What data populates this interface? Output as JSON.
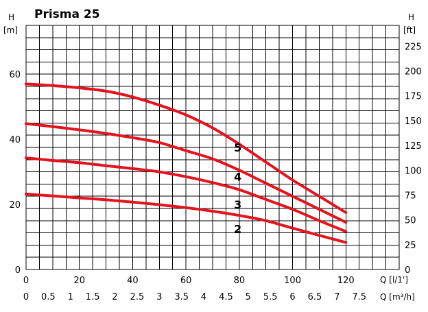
{
  "chart_data": {
    "type": "line",
    "title": "Prisma 25",
    "left_axis": {
      "symbol": "H",
      "unit": "[m]",
      "range": [
        0,
        75
      ],
      "ticks": [
        0,
        20,
        40,
        60
      ]
    },
    "right_axis": {
      "symbol": "H",
      "unit": "[ft]",
      "range": [
        0,
        246
      ],
      "ticks": [
        0,
        25,
        50,
        75,
        100,
        125,
        150,
        175,
        200,
        225
      ]
    },
    "x_axis_primary": {
      "label": "Q [l/1']",
      "range": [
        0,
        140
      ],
      "ticks": [
        0,
        20,
        40,
        60,
        80,
        100,
        120
      ]
    },
    "x_axis_secondary": {
      "label": "Q [m³/h]",
      "ticks": [
        "0",
        "0.5",
        "1",
        "1.5",
        "2",
        "2.5",
        "3",
        "3.5",
        "4",
        "4.5",
        "5",
        "5.5",
        "6",
        "6.5",
        "7",
        "7.5"
      ]
    },
    "grid": true,
    "line_color": "#e3141e",
    "series": [
      {
        "name": "5",
        "x": [
          0,
          10,
          20,
          30,
          40,
          50,
          60,
          70,
          80,
          90,
          100,
          110,
          120
        ],
        "y": [
          57,
          56.5,
          55.8,
          54.8,
          53,
          50.5,
          47.5,
          43.5,
          38.5,
          33,
          27.5,
          22.5,
          17.5
        ]
      },
      {
        "name": "4",
        "x": [
          0,
          10,
          20,
          30,
          40,
          50,
          60,
          70,
          80,
          90,
          100,
          110,
          120
        ],
        "y": [
          44.8,
          43.9,
          42.9,
          41.8,
          40.5,
          39,
          36.5,
          34,
          30.5,
          26.5,
          22.5,
          18.5,
          14.5
        ]
      },
      {
        "name": "3",
        "x": [
          0,
          10,
          20,
          30,
          40,
          50,
          60,
          70,
          80,
          90,
          100,
          110,
          120
        ],
        "y": [
          34.3,
          33.5,
          32.8,
          31.9,
          31,
          30,
          28.5,
          26.7,
          24.5,
          21.5,
          18.5,
          15,
          11.7
        ]
      },
      {
        "name": "2",
        "x": [
          0,
          10,
          20,
          30,
          40,
          50,
          60,
          70,
          80,
          90,
          100,
          110,
          120
        ],
        "y": [
          23.2,
          22.6,
          22,
          21.4,
          20.7,
          19.9,
          19,
          17.9,
          16.6,
          15,
          12.7,
          10.5,
          8.3
        ]
      }
    ],
    "curve_labels": [
      {
        "text": "5",
        "x": 78,
        "y": 37.5
      },
      {
        "text": "4",
        "x": 78,
        "y": 28.5
      },
      {
        "text": "3",
        "x": 78,
        "y": 20
      },
      {
        "text": "2",
        "x": 78,
        "y": 12.5
      }
    ]
  }
}
